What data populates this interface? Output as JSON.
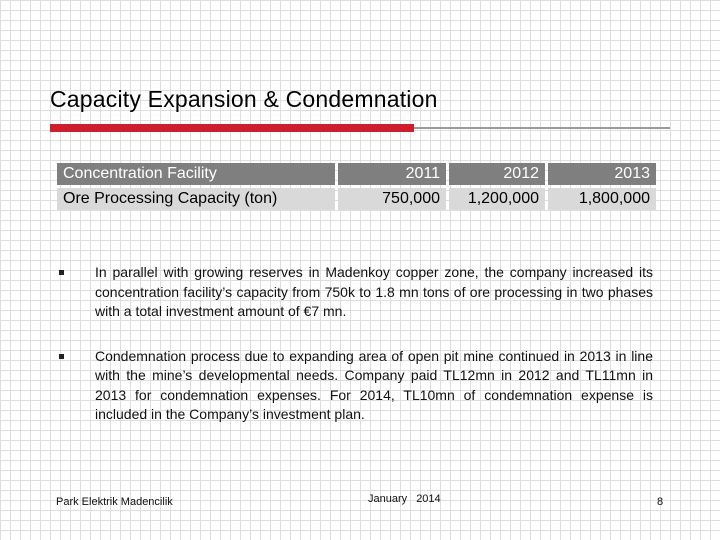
{
  "slide": {
    "title": "Capacity Expansion & Condemnation"
  },
  "table": {
    "header": [
      "Concentration Facility",
      "2011",
      "2012",
      "2013"
    ],
    "rows": [
      [
        "Ore Processing Capacity (ton)",
        "750,000",
        "1,200,000",
        "1,800,000"
      ]
    ]
  },
  "bullets": [
    "In parallel with growing reserves in Madenkoy copper zone, the company increased its concentration facility’s capacity from 750k to 1.8 mn tons of ore processing in two phases with a total investment amount of €7 mn.",
    "Condemnation process due to expanding area of open pit mine continued in 2013 in line with the mine’s developmental needs. Company paid TL12mn in 2012 and TL11mn in 2013 for condemnation expenses. For 2014, TL10mn of condemnation expense is included in the Company’s investment plan."
  ],
  "footer": {
    "company": "Park Elektrik Madencilik",
    "date": "January 2014",
    "page_number": "8"
  },
  "colors": {
    "accent_red": "#cc1f2b",
    "header_fill": "#7f7f7f",
    "row_fill": "#d9d9d9"
  }
}
